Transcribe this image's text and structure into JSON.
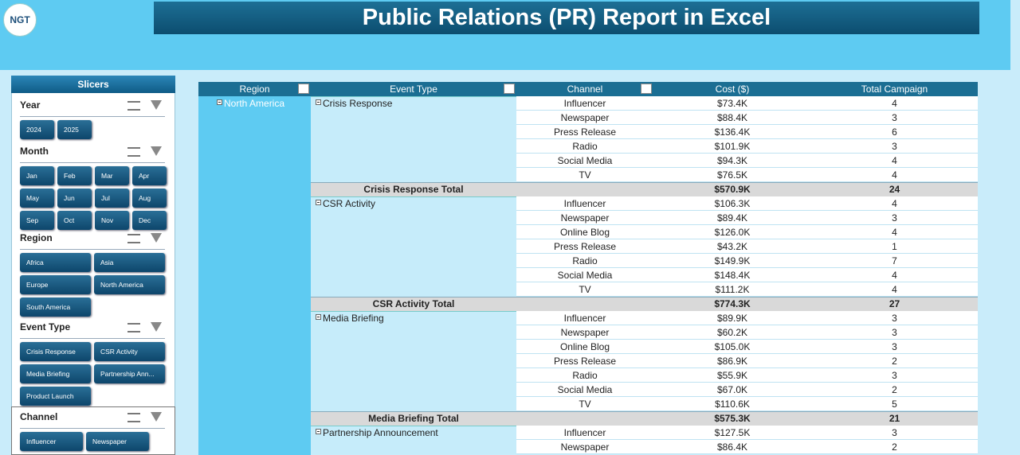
{
  "header": {
    "logo": "NGT",
    "title": "Public Relations (PR) Report in Excel"
  },
  "slicers": {
    "title": "Slicers",
    "groups": [
      {
        "title": "Year",
        "items": [
          "2024",
          "2025"
        ]
      },
      {
        "title": "Month",
        "items": [
          "Jan",
          "Feb",
          "Mar",
          "Apr",
          "May",
          "Jun",
          "Jul",
          "Aug",
          "Sep",
          "Oct",
          "Nov",
          "Dec"
        ]
      },
      {
        "title": "Region",
        "items": [
          "Africa",
          "Asia",
          "Europe",
          "North America",
          "South America"
        ]
      },
      {
        "title": "Event Type",
        "items": [
          "Crisis Response",
          "CSR Activity",
          "Media Briefing",
          "Partnership Ann...",
          "Product Launch"
        ]
      },
      {
        "title": "Channel",
        "items": [
          "Influencer",
          "Newspaper"
        ]
      }
    ]
  },
  "table": {
    "headers": [
      "Region",
      "Event Type",
      "Channel",
      "Cost ($)",
      "Total Campaign"
    ],
    "region": "North America",
    "groups": [
      {
        "event": "Crisis Response",
        "rows": [
          [
            "Influencer",
            "$73.4K",
            4
          ],
          [
            "Newspaper",
            "$88.4K",
            3
          ],
          [
            "Press Release",
            "$136.4K",
            6
          ],
          [
            "Radio",
            "$101.9K",
            3
          ],
          [
            "Social Media",
            "$94.3K",
            4
          ],
          [
            "TV",
            "$76.5K",
            4
          ]
        ],
        "total": [
          "Crisis Response Total",
          "$570.9K",
          24
        ]
      },
      {
        "event": "CSR Activity",
        "rows": [
          [
            "Influencer",
            "$106.3K",
            4
          ],
          [
            "Newspaper",
            "$89.4K",
            3
          ],
          [
            "Online Blog",
            "$126.0K",
            4
          ],
          [
            "Press Release",
            "$43.2K",
            1
          ],
          [
            "Radio",
            "$149.9K",
            7
          ],
          [
            "Social Media",
            "$148.4K",
            4
          ],
          [
            "TV",
            "$111.2K",
            4
          ]
        ],
        "total": [
          "CSR Activity Total",
          "$774.3K",
          27
        ]
      },
      {
        "event": "Media Briefing",
        "rows": [
          [
            "Influencer",
            "$89.9K",
            3
          ],
          [
            "Newspaper",
            "$60.2K",
            3
          ],
          [
            "Online Blog",
            "$105.0K",
            3
          ],
          [
            "Press Release",
            "$86.9K",
            2
          ],
          [
            "Radio",
            "$55.9K",
            3
          ],
          [
            "Social Media",
            "$67.0K",
            2
          ],
          [
            "TV",
            "$110.6K",
            5
          ]
        ],
        "total": [
          "Media Briefing Total",
          "$575.3K",
          21
        ]
      },
      {
        "event": "Partnership Announcement",
        "rows": [
          [
            "Influencer",
            "$127.5K",
            3
          ],
          [
            "Newspaper",
            "$86.4K",
            2
          ]
        ]
      }
    ]
  }
}
